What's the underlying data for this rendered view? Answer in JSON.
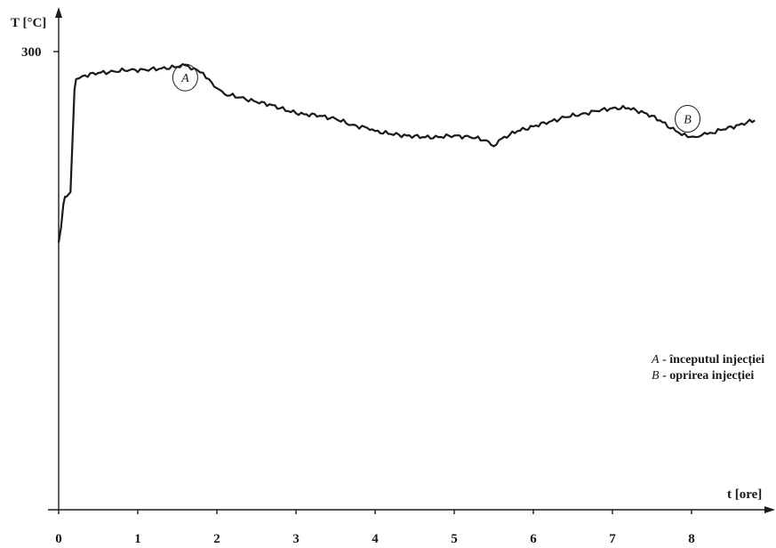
{
  "chart_data": {
    "type": "line",
    "title": "",
    "ylabel": "T [°C]",
    "xlabel": "t [ore]",
    "xlim": [
      0,
      9.1
    ],
    "ylim": [
      0,
      300
    ],
    "x_ticks": [
      0,
      1,
      2,
      3,
      4,
      5,
      6,
      7,
      8
    ],
    "x_tick_labels": [
      "0",
      "1",
      "2",
      "3",
      "4",
      "5",
      "6",
      "7",
      "8"
    ],
    "y_ticks": [
      300
    ],
    "y_tick_labels": [
      "300"
    ],
    "grid": false,
    "series": [
      {
        "x": [
          0.0,
          0.03,
          0.06,
          0.08,
          0.1,
          0.15,
          0.2,
          0.22,
          0.3,
          0.5,
          0.7,
          0.9,
          1.1,
          1.3,
          1.5,
          1.6,
          1.75,
          1.9,
          2.0,
          2.1,
          2.3,
          2.5,
          2.7,
          2.9,
          3.1,
          3.3,
          3.5,
          3.7,
          3.9,
          4.0,
          4.2,
          4.4,
          4.6,
          4.8,
          5.0,
          5.2,
          5.4,
          5.5,
          5.6,
          5.8,
          6.0,
          6.2,
          6.4,
          6.6,
          6.8,
          7.0,
          7.2,
          7.4,
          7.6,
          7.8,
          7.95,
          8.05,
          8.2,
          8.4,
          8.6,
          8.8
        ],
        "y": [
          175,
          185,
          200,
          205,
          205,
          208,
          275,
          282,
          284,
          286,
          287,
          288,
          288,
          289,
          290,
          291,
          288,
          282,
          276,
          272,
          270,
          267,
          265,
          261,
          259,
          258,
          256,
          252,
          250,
          248,
          246,
          245,
          244,
          244,
          245,
          244,
          242,
          238,
          243,
          248,
          251,
          254,
          257,
          259,
          261,
          263,
          263,
          260,
          255,
          248,
          244,
          244,
          246,
          249,
          252,
          255
        ]
      }
    ],
    "annotations": [
      {
        "label": "A",
        "x": 1.6,
        "y": 283
      },
      {
        "label": "B",
        "x": 7.95,
        "y": 256
      }
    ],
    "legend_entries": [
      {
        "key": "A",
        "text": " - începutul injecției"
      },
      {
        "key": "B",
        "text": " - oprirea injecției"
      }
    ],
    "colors": {
      "line": "#1a1a1a",
      "axis": "#1a1a1a"
    }
  }
}
